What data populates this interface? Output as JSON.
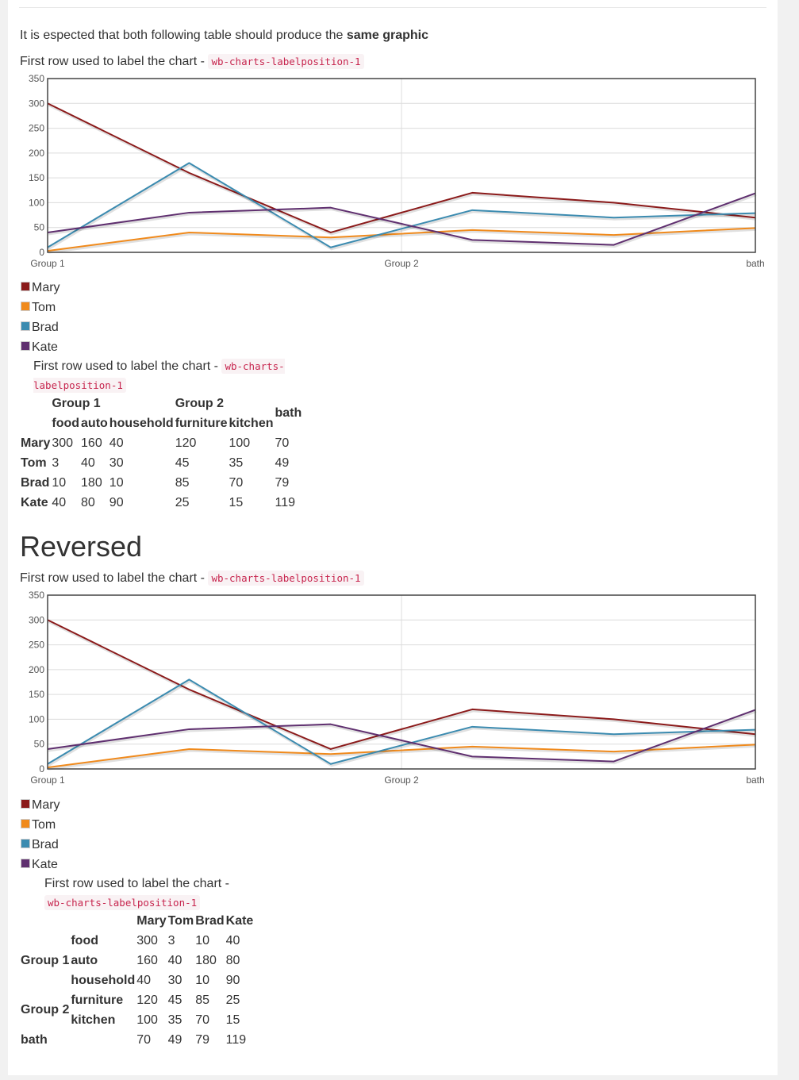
{
  "intro": {
    "text": "It is espected that both following table should produce the ",
    "bold": "same graphic"
  },
  "caption": {
    "text": "First row used to label the chart - ",
    "code": "wb-charts-labelposition-1"
  },
  "reversed_heading": "Reversed",
  "colors": {
    "Mary": "#8b1a1a",
    "Tom": "#f08a1c",
    "Brad": "#3b8bb0",
    "Kate": "#5f2f6f"
  },
  "chart_data": [
    {
      "type": "line",
      "categories": [
        "food",
        "auto",
        "household",
        "furniture",
        "kitchen",
        "bath"
      ],
      "x_axis_labels": [
        "Group 1",
        "Group 2",
        "bath"
      ],
      "ylim": [
        0,
        350
      ],
      "y_ticks": [
        0,
        50,
        100,
        150,
        200,
        250,
        300,
        350
      ],
      "grid": true,
      "legend": "bottom-left",
      "series": [
        {
          "name": "Mary",
          "values": [
            300,
            160,
            40,
            120,
            100,
            70
          ]
        },
        {
          "name": "Tom",
          "values": [
            3,
            40,
            30,
            45,
            35,
            49
          ]
        },
        {
          "name": "Brad",
          "values": [
            10,
            180,
            10,
            85,
            70,
            79
          ]
        },
        {
          "name": "Kate",
          "values": [
            40,
            80,
            90,
            25,
            15,
            119
          ]
        }
      ]
    },
    {
      "type": "line",
      "categories": [
        "food",
        "auto",
        "household",
        "furniture",
        "kitchen",
        "bath"
      ],
      "x_axis_labels": [
        "Group 1",
        "Group 2",
        "bath"
      ],
      "ylim": [
        0,
        350
      ],
      "y_ticks": [
        0,
        50,
        100,
        150,
        200,
        250,
        300,
        350
      ],
      "grid": true,
      "legend": "bottom-left",
      "series": [
        {
          "name": "Mary",
          "values": [
            300,
            160,
            40,
            120,
            100,
            70
          ]
        },
        {
          "name": "Tom",
          "values": [
            3,
            40,
            30,
            45,
            35,
            49
          ]
        },
        {
          "name": "Brad",
          "values": [
            10,
            180,
            10,
            85,
            70,
            79
          ]
        },
        {
          "name": "Kate",
          "values": [
            40,
            80,
            90,
            25,
            15,
            119
          ]
        }
      ]
    }
  ],
  "table1": {
    "group_headers": [
      "Group 1",
      "Group 2",
      "bath"
    ],
    "sub_headers": [
      "food",
      "auto",
      "household",
      "furniture",
      "kitchen"
    ],
    "rows": [
      {
        "label": "Mary",
        "values": [
          "300",
          "160",
          "40",
          "120",
          "100",
          "70"
        ]
      },
      {
        "label": "Tom",
        "values": [
          "3",
          "40",
          "30",
          "45",
          "35",
          "49"
        ]
      },
      {
        "label": "Brad",
        "values": [
          "10",
          "180",
          "10",
          "85",
          "70",
          "79"
        ]
      },
      {
        "label": "Kate",
        "values": [
          "40",
          "80",
          "90",
          "25",
          "15",
          "119"
        ]
      }
    ]
  },
  "table2": {
    "headers": [
      "Mary",
      "Tom",
      "Brad",
      "Kate"
    ],
    "groups": [
      "Group 1",
      "Group 2",
      "bath"
    ],
    "rows": [
      {
        "label": "food",
        "values": [
          "300",
          "3",
          "10",
          "40"
        ]
      },
      {
        "label": "auto",
        "values": [
          "160",
          "40",
          "180",
          "80"
        ]
      },
      {
        "label": "household",
        "values": [
          "40",
          "30",
          "10",
          "90"
        ]
      },
      {
        "label": "furniture",
        "values": [
          "120",
          "45",
          "85",
          "25"
        ]
      },
      {
        "label": "kitchen",
        "values": [
          "100",
          "35",
          "70",
          "15"
        ]
      },
      {
        "label": "",
        "values": [
          "70",
          "49",
          "79",
          "119"
        ]
      }
    ]
  }
}
